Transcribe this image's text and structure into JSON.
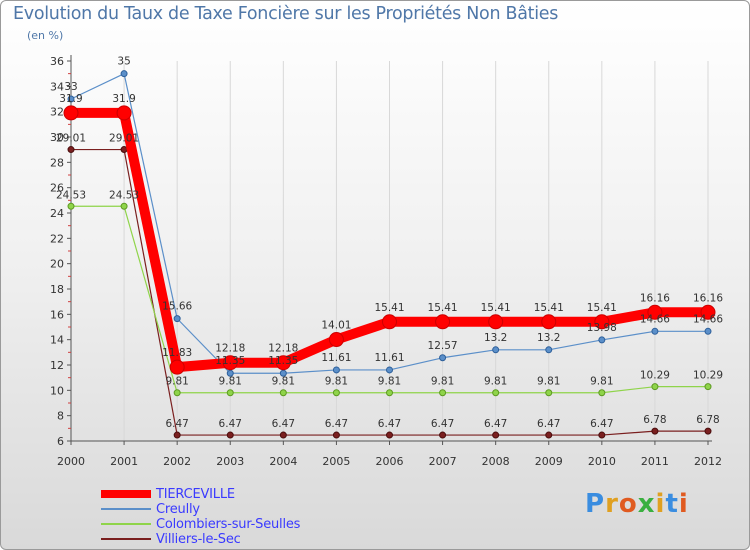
{
  "chart_data": {
    "type": "line",
    "title": "Evolution du Taux de Taxe Foncière sur les Propriétés Non Bâties",
    "ylabel": "(en %)",
    "xlabel": "",
    "ylim": [
      6,
      36
    ],
    "yticks": [
      "6",
      "8",
      "10",
      "12",
      "14",
      "16",
      "18",
      "20",
      "22",
      "24",
      "26",
      "28",
      "30",
      "32",
      "34",
      "36"
    ],
    "categories": [
      "2000",
      "2001",
      "2002",
      "2003",
      "2004",
      "2005",
      "2006",
      "2007",
      "2008",
      "2009",
      "2010",
      "2011",
      "2012"
    ],
    "series": [
      {
        "name": "TIERCEVILLE",
        "color": "#ff0000",
        "values": [
          31.9,
          31.9,
          11.83,
          12.18,
          12.18,
          14.01,
          15.41,
          15.41,
          15.41,
          15.41,
          15.41,
          16.16,
          16.16
        ],
        "labels": [
          "31.9",
          "31.9",
          "11.83",
          "12.18",
          "12.18",
          "14.01",
          "15.41",
          "15.41",
          "15.41",
          "15.41",
          "15.41",
          "16.16",
          "16.16"
        ]
      },
      {
        "name": "Creully",
        "color": "#5b8fc9",
        "values": [
          33,
          35,
          15.66,
          11.35,
          11.35,
          11.61,
          11.61,
          12.57,
          13.2,
          13.2,
          13.98,
          14.66,
          14.66
        ],
        "labels": [
          "33",
          "35",
          "15.66",
          "11.35",
          "11.35",
          "11.61",
          "11.61",
          "12.57",
          "13.2",
          "13.2",
          "13.98",
          "14.66",
          "14.66"
        ]
      },
      {
        "name": "Colombiers-sur-Seulles",
        "color": "#8fd44a",
        "values": [
          24.53,
          24.53,
          9.81,
          9.81,
          9.81,
          9.81,
          9.81,
          9.81,
          9.81,
          9.81,
          9.81,
          10.29,
          10.29
        ],
        "labels": [
          "24.53",
          "24.53",
          "9.81",
          "9.81",
          "9.81",
          "9.81",
          "9.81",
          "9.81",
          "9.81",
          "9.81",
          "9.81",
          "10.29",
          "10.29"
        ]
      },
      {
        "name": "Villiers-le-Sec",
        "color": "#7a1f1f",
        "values": [
          29.01,
          29.01,
          6.47,
          6.47,
          6.47,
          6.47,
          6.47,
          6.47,
          6.47,
          6.47,
          6.47,
          6.78,
          6.78
        ],
        "labels": [
          "29.01",
          "29.01",
          "6.47",
          "6.47",
          "6.47",
          "6.47",
          "6.47",
          "6.47",
          "6.47",
          "6.47",
          "6.47",
          "6.78",
          "6.78"
        ]
      }
    ]
  },
  "legend": [
    {
      "label": "TIERCEVILLE",
      "color": "#ff0000"
    },
    {
      "label": "Creully",
      "color": "#5b8fc9"
    },
    {
      "label": "Colombiers-sur-Seulles",
      "color": "#8fd44a"
    },
    {
      "label": "Villiers-le-Sec",
      "color": "#7a1f1f"
    }
  ],
  "logo": {
    "text": "Proxiti"
  }
}
